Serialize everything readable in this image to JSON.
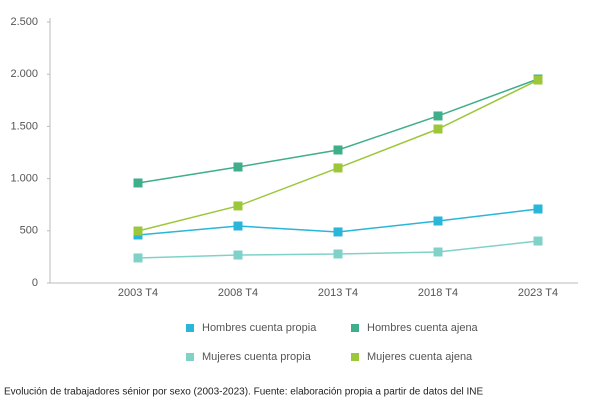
{
  "chart_data": {
    "type": "line",
    "categories": [
      "2003 T4",
      "2008 T4",
      "2013 T4",
      "2018 T4",
      "2023 T4"
    ],
    "series": [
      {
        "name": "Hombres cuenta propia",
        "color": "#29b6d8",
        "values": [
          460,
          546,
          489,
          594,
          709
        ]
      },
      {
        "name": "Hombres cuenta ajena",
        "color": "#3fae8a",
        "values": [
          958,
          1111,
          1274,
          1600,
          1954
        ]
      },
      {
        "name": "Mujeres cuenta propia",
        "color": "#80d2c8",
        "values": [
          240,
          268,
          278,
          297,
          402
        ]
      },
      {
        "name": "Mujeres cuenta ajena",
        "color": "#9dc73b",
        "values": [
          498,
          738,
          1102,
          1475,
          1944
        ]
      }
    ],
    "ylim": [
      0,
      2500
    ],
    "yticks": [
      0,
      500,
      {
        "value": 1000,
        "label": "1.000"
      },
      {
        "value": 1500,
        "label": "1.500"
      },
      {
        "value": 2000,
        "label": "2.000"
      },
      {
        "value": 2500,
        "label": "2.500"
      }
    ],
    "grid": false,
    "caption": "Evolución de trabajadores sénior por sexo (2003-2023). Fuente: elaboración propia a partir de datos del INE"
  }
}
